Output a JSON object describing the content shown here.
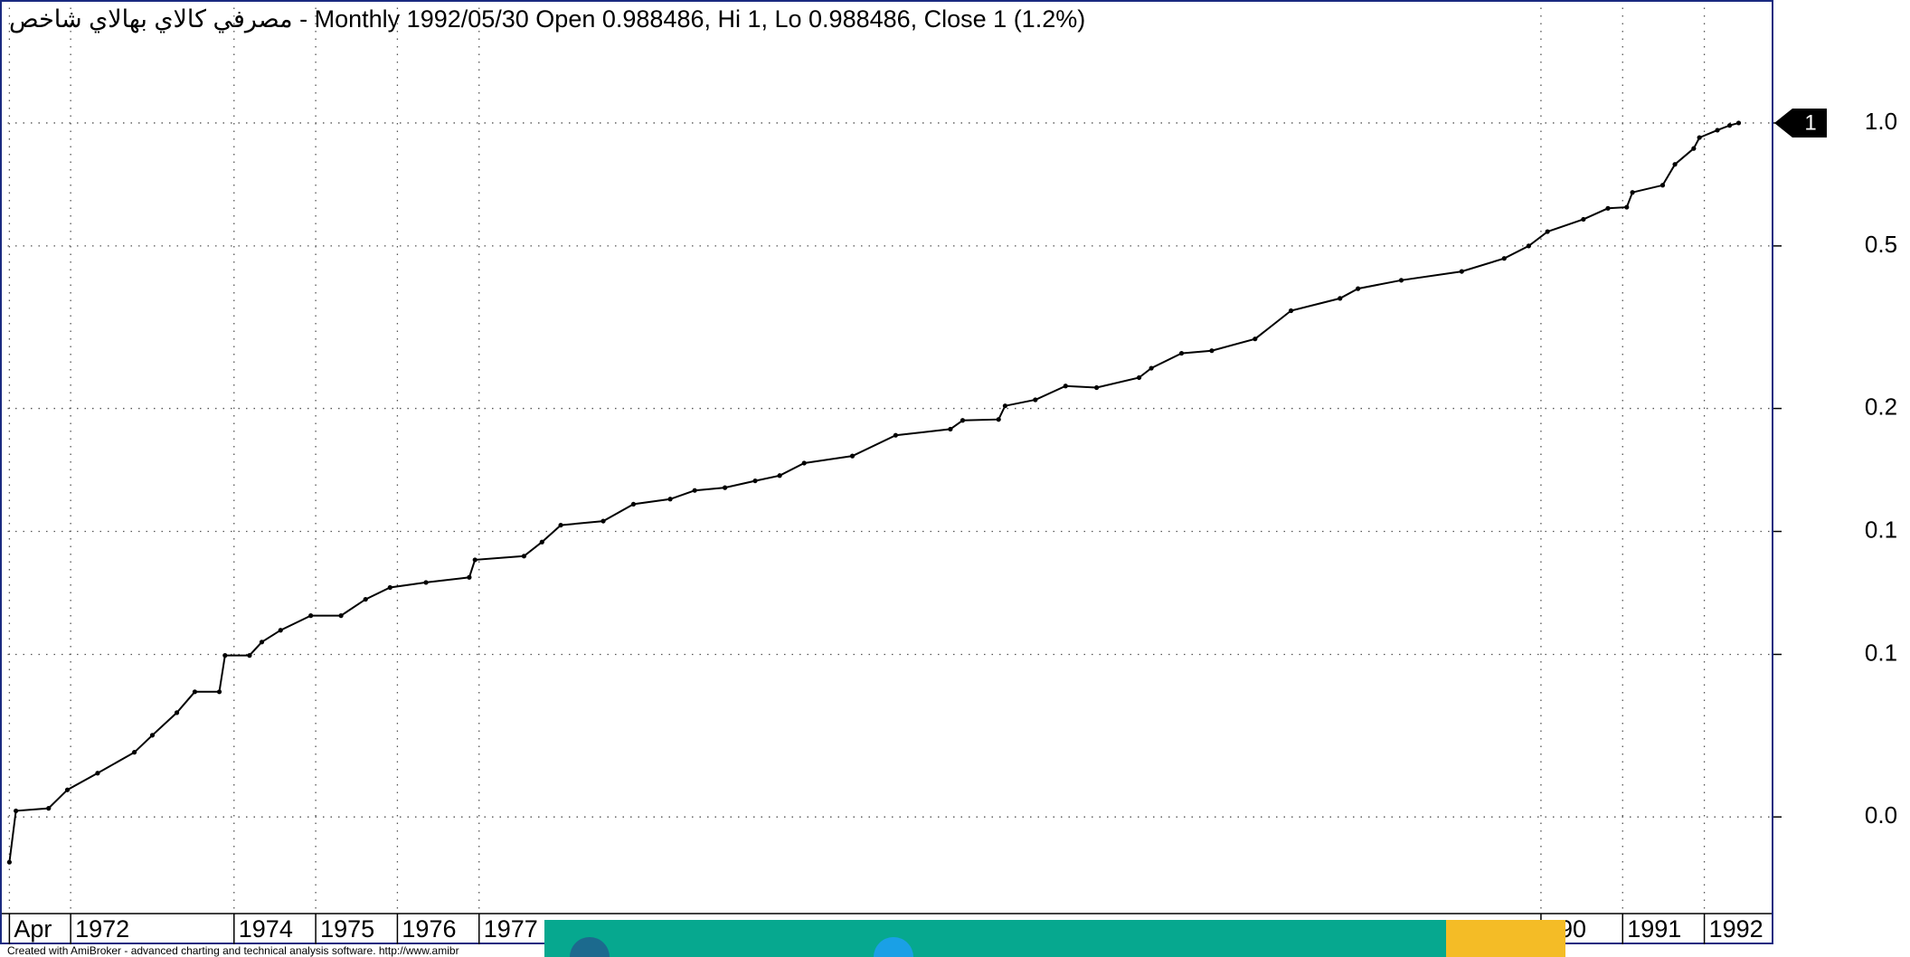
{
  "chart_data": {
    "type": "line",
    "title": "مصرفي كالاي بهالاي شاخص - Monthly 1992/05/30 Open 0.988486, Hi 1, Lo 0.988486, Close 1 (1.2%)",
    "footer": "Created with AmiBroker - advanced charting and technical analysis software. http://www.amibr",
    "log_scale": true,
    "grid": true,
    "color": "#000000",
    "x": [
      1971.25,
      1971.33,
      1971.73,
      1971.96,
      1972.33,
      1972.78,
      1973.0,
      1973.3,
      1973.52,
      1973.82,
      1973.89,
      1974.19,
      1974.34,
      1974.57,
      1974.94,
      1975.31,
      1975.61,
      1975.91,
      1976.35,
      1976.88,
      1976.95,
      1977.55,
      1977.77,
      1978.0,
      1978.52,
      1978.89,
      1979.34,
      1979.64,
      1980.01,
      1980.38,
      1980.68,
      1980.98,
      1981.57,
      1982.1,
      1982.77,
      1982.92,
      1983.36,
      1983.44,
      1983.81,
      1984.18,
      1984.56,
      1985.08,
      1985.23,
      1985.6,
      1985.97,
      1986.5,
      1986.94,
      1987.54,
      1987.76,
      1988.29,
      1989.03,
      1989.55,
      1989.85,
      1990.08,
      1990.52,
      1990.82,
      1991.05,
      1991.12,
      1991.49,
      1991.64,
      1991.87,
      1991.94,
      1992.16,
      1992.31,
      1992.42
    ],
    "values": [
      0.0155,
      0.0207,
      0.021,
      0.0233,
      0.0256,
      0.0288,
      0.0317,
      0.036,
      0.0405,
      0.0405,
      0.0497,
      0.0497,
      0.0536,
      0.0573,
      0.0622,
      0.0622,
      0.0682,
      0.0729,
      0.075,
      0.0772,
      0.0852,
      0.087,
      0.0942,
      0.1036,
      0.106,
      0.1166,
      0.12,
      0.126,
      0.128,
      0.133,
      0.137,
      0.147,
      0.153,
      0.172,
      0.178,
      0.187,
      0.188,
      0.203,
      0.21,
      0.227,
      0.225,
      0.238,
      0.251,
      0.273,
      0.277,
      0.296,
      0.347,
      0.372,
      0.393,
      0.412,
      0.433,
      0.466,
      0.5,
      0.542,
      0.581,
      0.618,
      0.622,
      0.676,
      0.704,
      0.792,
      0.866,
      0.921,
      0.96,
      0.986,
      1
    ],
    "xlim": [
      1971.135,
      1992.835
    ],
    "xticks": [
      {
        "value": 1971.25,
        "label": "Apr"
      },
      1972,
      1974,
      1975,
      1976,
      1977,
      {
        "value": 1990,
        "label": "990"
      },
      1991,
      1992
    ],
    "ylim": [
      0.0116,
      2
    ],
    "yticks": [
      {
        "value": 1,
        "label": "1.0"
      },
      0.5,
      0.2,
      0.1,
      {
        "value": 0.05,
        "label": "0.1"
      },
      {
        "value": 0.02,
        "label": "0.0"
      }
    ]
  }
}
